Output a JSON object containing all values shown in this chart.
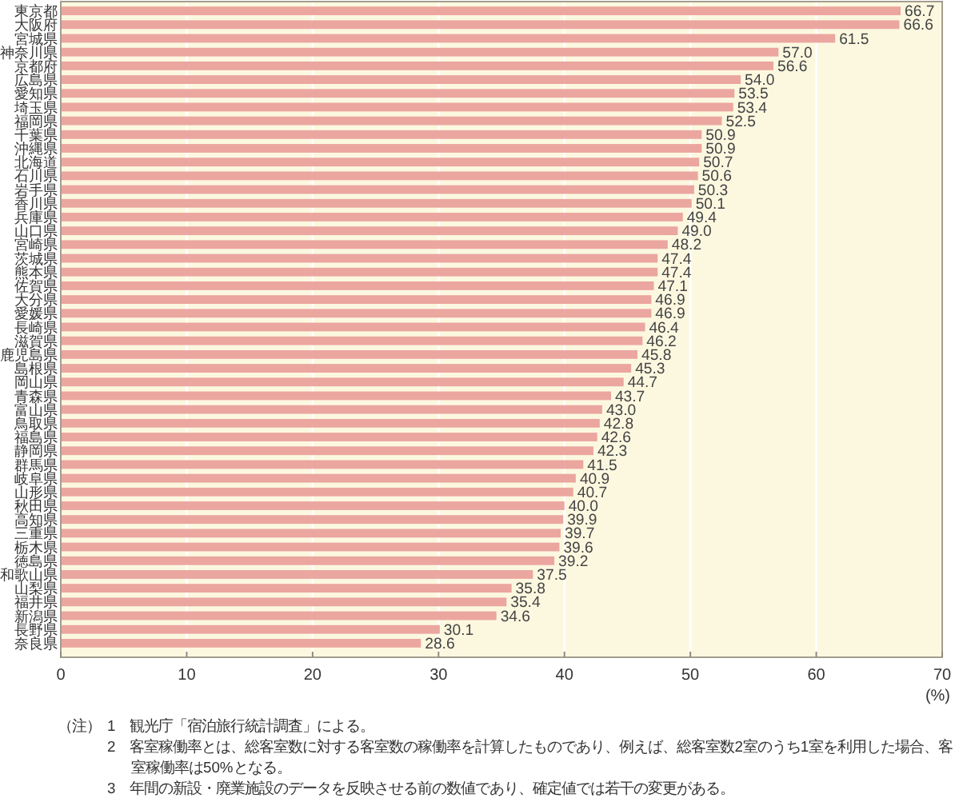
{
  "chart_data": {
    "type": "bar",
    "orientation": "horizontal",
    "categories": [
      "東京都",
      "大阪府",
      "宮城県",
      "神奈川県",
      "京都府",
      "広島県",
      "愛知県",
      "埼玉県",
      "福岡県",
      "千葉県",
      "沖縄県",
      "北海道",
      "石川県",
      "岩手県",
      "香川県",
      "兵庫県",
      "山口県",
      "宮崎県",
      "茨城県",
      "熊本県",
      "佐賀県",
      "大分県",
      "愛媛県",
      "長崎県",
      "滋賀県",
      "鹿児島県",
      "島根県",
      "岡山県",
      "青森県",
      "富山県",
      "鳥取県",
      "福島県",
      "静岡県",
      "群馬県",
      "岐阜県",
      "山形県",
      "秋田県",
      "高知県",
      "三重県",
      "栃木県",
      "徳島県",
      "和歌山県",
      "山梨県",
      "福井県",
      "新潟県",
      "長野県",
      "奈良県"
    ],
    "values": [
      66.7,
      66.6,
      61.5,
      57.0,
      56.6,
      54.0,
      53.5,
      53.4,
      52.5,
      50.9,
      50.9,
      50.7,
      50.6,
      50.3,
      50.1,
      49.4,
      49.0,
      48.2,
      47.4,
      47.4,
      47.1,
      46.9,
      46.9,
      46.4,
      46.2,
      45.8,
      45.3,
      44.7,
      43.7,
      43.0,
      42.8,
      42.6,
      42.3,
      41.5,
      40.9,
      40.7,
      40.0,
      39.9,
      39.7,
      39.6,
      39.2,
      37.5,
      35.8,
      35.4,
      34.6,
      30.1,
      28.6
    ],
    "value_labels": [
      "66.7",
      "66.6",
      "61.5",
      "57.0",
      "56.6",
      "54.0",
      "53.5",
      "53.4",
      "52.5",
      "50.9",
      "50.9",
      "50.7",
      "50.6",
      "50.3",
      "50.1",
      "49.4",
      "49.0",
      "48.2",
      "47.4",
      "47.4",
      "47.1",
      "46.9",
      "46.9",
      "46.4",
      "46.2",
      "45.8",
      "45.3",
      "44.7",
      "43.7",
      "43.0",
      "42.8",
      "42.6",
      "42.3",
      "41.5",
      "40.9",
      "40.7",
      "40.0",
      "39.9",
      "39.7",
      "39.6",
      "39.2",
      "37.5",
      "35.8",
      "35.4",
      "34.6",
      "30.1",
      "28.6"
    ],
    "color": "#eba6a0",
    "xlim": [
      0,
      70
    ],
    "xticks": [
      0,
      10,
      20,
      30,
      40,
      50,
      60,
      70
    ],
    "xlabel": "(%)",
    "grid": "x",
    "annotations": [
      "（注）",
      "1　観光庁「宿泊旅行統計調査」による。",
      "2　客室稼働率とは、総客室数に対する客室数の稼働率を計算したものであり、例えば、総客室数2室のうち1室を利用した場合、客室稼働率は50%となる。",
      "3　年間の新設・廃業施設のデータを反映させる前の数値であり、確定値では若干の変更がある。"
    ]
  }
}
